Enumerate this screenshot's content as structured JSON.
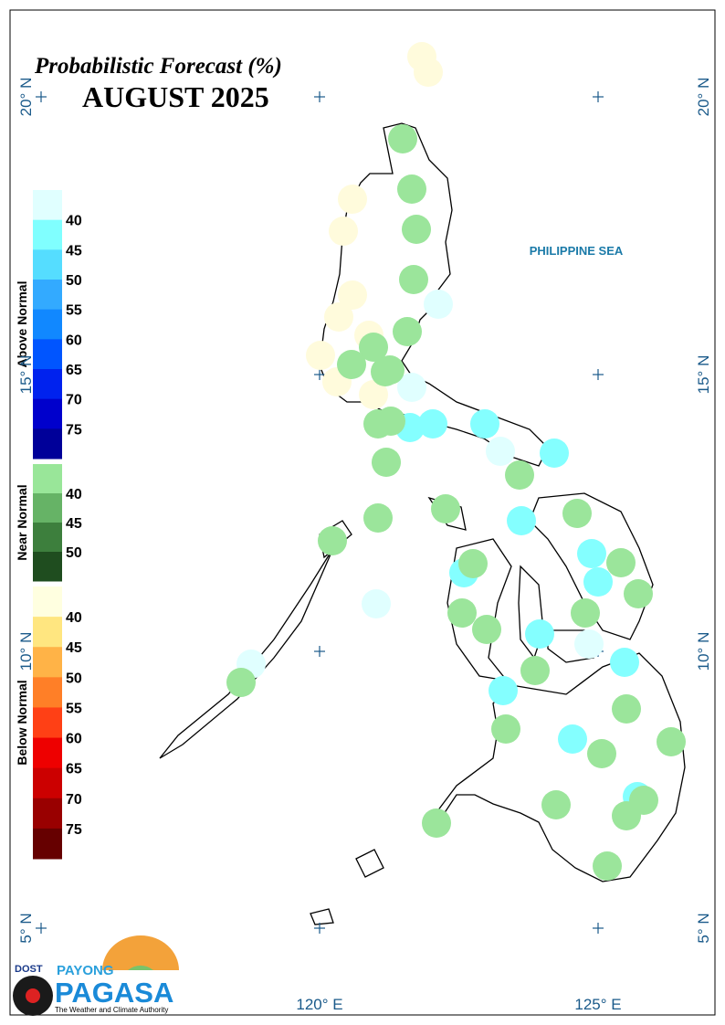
{
  "map": {
    "title": "Probabilistic Forecast (%)",
    "subtitle": "AUGUST 2025",
    "sea_label": "PHILIPPINE SEA",
    "lat_labels": [
      "20° N",
      "15° N",
      "10° N",
      "5° N"
    ],
    "lon_labels": [
      "120° E",
      "125° E"
    ]
  },
  "legend": {
    "groups": [
      {
        "name": "Above Normal",
        "ticks": [
          40,
          45,
          50,
          55,
          60,
          65,
          70,
          75
        ]
      },
      {
        "name": "Near Normal",
        "ticks": [
          40,
          45,
          50
        ]
      },
      {
        "name": "Below Normal",
        "ticks": [
          40,
          45,
          50,
          55,
          60,
          65,
          70,
          75
        ]
      }
    ]
  },
  "logo": {
    "agency": "DOST",
    "brand_top": "PAYONG",
    "brand": "PAGASA",
    "tagline": "The Weather and Climate Authority"
  }
}
